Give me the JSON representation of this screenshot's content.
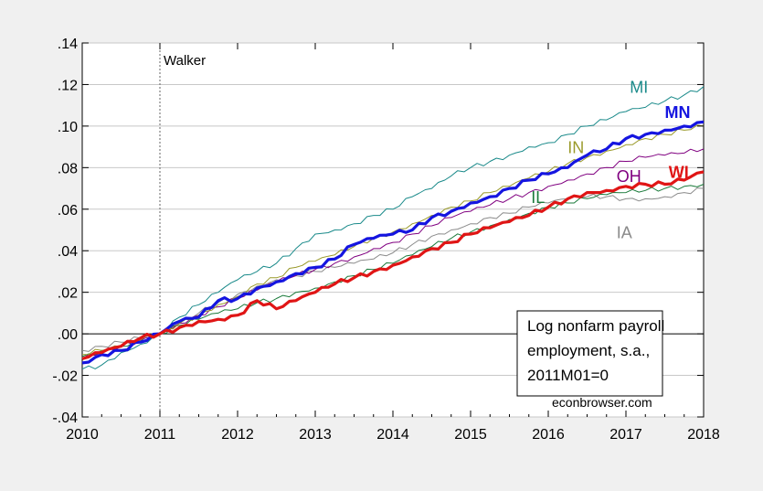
{
  "chart_data": {
    "type": "line",
    "title": "",
    "xlabel": "",
    "ylabel": "",
    "x_ticks": [
      "2010",
      "2011",
      "2012",
      "2013",
      "2014",
      "2015",
      "2016",
      "2017",
      "2018"
    ],
    "y_ticks": [
      ".14",
      ".12",
      ".10",
      ".08",
      ".06",
      ".04",
      ".02",
      ".00",
      "-.02",
      "-.04"
    ],
    "xlim": [
      2010.0,
      2018.0
    ],
    "ylim": [
      -0.04,
      0.14
    ],
    "grid": true,
    "zero_line": true,
    "vline": {
      "x": 2011.0,
      "label": "Walker"
    },
    "annotation_box": {
      "lines": [
        "Log nonfarm payroll",
        "employment, s.a.,",
        "2011M01=0"
      ],
      "source": "econbrowser.com"
    },
    "series": [
      {
        "name": "MI",
        "color": "#1a8a8a",
        "bold": false,
        "points": [
          [
            2010.0,
            -0.017
          ],
          [
            2010.25,
            -0.015
          ],
          [
            2010.5,
            -0.009
          ],
          [
            2010.75,
            -0.005
          ],
          [
            2011.0,
            0.0
          ],
          [
            2011.25,
            0.008
          ],
          [
            2011.5,
            0.014
          ],
          [
            2011.75,
            0.02
          ],
          [
            2012.0,
            0.026
          ],
          [
            2012.25,
            0.03
          ],
          [
            2012.5,
            0.034
          ],
          [
            2012.75,
            0.041
          ],
          [
            2013.0,
            0.048
          ],
          [
            2013.25,
            0.05
          ],
          [
            2013.5,
            0.053
          ],
          [
            2013.75,
            0.057
          ],
          [
            2014.0,
            0.06
          ],
          [
            2014.25,
            0.066
          ],
          [
            2014.5,
            0.07
          ],
          [
            2014.75,
            0.076
          ],
          [
            2015.0,
            0.08
          ],
          [
            2015.25,
            0.083
          ],
          [
            2015.5,
            0.086
          ],
          [
            2015.75,
            0.09
          ],
          [
            2016.0,
            0.092
          ],
          [
            2016.25,
            0.096
          ],
          [
            2016.5,
            0.1
          ],
          [
            2016.75,
            0.103
          ],
          [
            2017.0,
            0.107
          ],
          [
            2017.25,
            0.109
          ],
          [
            2017.5,
            0.112
          ],
          [
            2017.75,
            0.115
          ],
          [
            2018.0,
            0.119
          ]
        ]
      },
      {
        "name": "MN",
        "color": "#1515e0",
        "bold": true,
        "points": [
          [
            2010.0,
            -0.014
          ],
          [
            2010.25,
            -0.01
          ],
          [
            2010.5,
            -0.008
          ],
          [
            2010.75,
            -0.004
          ],
          [
            2011.0,
            0.0
          ],
          [
            2011.25,
            0.006
          ],
          [
            2011.5,
            0.008
          ],
          [
            2011.75,
            0.016
          ],
          [
            2012.0,
            0.017
          ],
          [
            2012.25,
            0.022
          ],
          [
            2012.5,
            0.025
          ],
          [
            2012.75,
            0.029
          ],
          [
            2013.0,
            0.032
          ],
          [
            2013.25,
            0.036
          ],
          [
            2013.5,
            0.043
          ],
          [
            2013.75,
            0.046
          ],
          [
            2014.0,
            0.048
          ],
          [
            2014.25,
            0.05
          ],
          [
            2014.5,
            0.056
          ],
          [
            2014.75,
            0.059
          ],
          [
            2015.0,
            0.063
          ],
          [
            2015.25,
            0.066
          ],
          [
            2015.5,
            0.07
          ],
          [
            2015.75,
            0.074
          ],
          [
            2016.0,
            0.077
          ],
          [
            2016.25,
            0.08
          ],
          [
            2016.5,
            0.086
          ],
          [
            2016.75,
            0.089
          ],
          [
            2017.0,
            0.094
          ],
          [
            2017.25,
            0.096
          ],
          [
            2017.5,
            0.098
          ],
          [
            2017.75,
            0.1
          ],
          [
            2018.0,
            0.102
          ]
        ]
      },
      {
        "name": "IN",
        "color": "#9a9a2a",
        "bold": false,
        "points": [
          [
            2010.0,
            -0.01
          ],
          [
            2010.25,
            -0.008
          ],
          [
            2010.5,
            -0.006
          ],
          [
            2010.75,
            -0.003
          ],
          [
            2011.0,
            0.0
          ],
          [
            2011.25,
            0.005
          ],
          [
            2011.5,
            0.009
          ],
          [
            2011.75,
            0.014
          ],
          [
            2012.0,
            0.018
          ],
          [
            2012.25,
            0.024
          ],
          [
            2012.5,
            0.027
          ],
          [
            2012.75,
            0.032
          ],
          [
            2013.0,
            0.035
          ],
          [
            2013.25,
            0.038
          ],
          [
            2013.5,
            0.042
          ],
          [
            2013.75,
            0.046
          ],
          [
            2014.0,
            0.049
          ],
          [
            2014.25,
            0.053
          ],
          [
            2014.5,
            0.057
          ],
          [
            2014.75,
            0.061
          ],
          [
            2015.0,
            0.064
          ],
          [
            2015.25,
            0.068
          ],
          [
            2015.5,
            0.071
          ],
          [
            2015.75,
            0.075
          ],
          [
            2016.0,
            0.078
          ],
          [
            2016.25,
            0.082
          ],
          [
            2016.5,
            0.085
          ],
          [
            2016.75,
            0.088
          ],
          [
            2017.0,
            0.091
          ],
          [
            2017.25,
            0.094
          ],
          [
            2017.5,
            0.096
          ],
          [
            2017.75,
            0.098
          ],
          [
            2018.0,
            0.1
          ]
        ]
      },
      {
        "name": "OH",
        "color": "#800080",
        "bold": false,
        "points": [
          [
            2010.0,
            -0.012
          ],
          [
            2010.25,
            -0.009
          ],
          [
            2010.5,
            -0.006
          ],
          [
            2010.75,
            -0.003
          ],
          [
            2011.0,
            0.0
          ],
          [
            2011.25,
            0.005
          ],
          [
            2011.5,
            0.009
          ],
          [
            2011.75,
            0.013
          ],
          [
            2012.0,
            0.017
          ],
          [
            2012.25,
            0.021
          ],
          [
            2012.5,
            0.025
          ],
          [
            2012.75,
            0.028
          ],
          [
            2013.0,
            0.031
          ],
          [
            2013.25,
            0.034
          ],
          [
            2013.5,
            0.037
          ],
          [
            2013.75,
            0.041
          ],
          [
            2014.0,
            0.044
          ],
          [
            2014.25,
            0.048
          ],
          [
            2014.5,
            0.052
          ],
          [
            2014.75,
            0.056
          ],
          [
            2015.0,
            0.059
          ],
          [
            2015.25,
            0.062
          ],
          [
            2015.5,
            0.065
          ],
          [
            2015.75,
            0.068
          ],
          [
            2016.0,
            0.071
          ],
          [
            2016.25,
            0.074
          ],
          [
            2016.5,
            0.077
          ],
          [
            2016.75,
            0.08
          ],
          [
            2017.0,
            0.083
          ],
          [
            2017.25,
            0.085
          ],
          [
            2017.5,
            0.086
          ],
          [
            2017.75,
            0.087
          ],
          [
            2018.0,
            0.089
          ]
        ]
      },
      {
        "name": "IL",
        "color": "#1a7a3a",
        "bold": false,
        "points": [
          [
            2010.0,
            -0.011
          ],
          [
            2010.25,
            -0.008
          ],
          [
            2010.5,
            -0.006
          ],
          [
            2010.75,
            -0.003
          ],
          [
            2011.0,
            0.0
          ],
          [
            2011.25,
            0.004
          ],
          [
            2011.5,
            0.007
          ],
          [
            2011.75,
            0.01
          ],
          [
            2012.0,
            0.012
          ],
          [
            2012.25,
            0.015
          ],
          [
            2012.5,
            0.017
          ],
          [
            2012.75,
            0.02
          ],
          [
            2013.0,
            0.022
          ],
          [
            2013.25,
            0.025
          ],
          [
            2013.5,
            0.028
          ],
          [
            2013.75,
            0.031
          ],
          [
            2014.0,
            0.034
          ],
          [
            2014.25,
            0.038
          ],
          [
            2014.5,
            0.042
          ],
          [
            2014.75,
            0.046
          ],
          [
            2015.0,
            0.049
          ],
          [
            2015.25,
            0.052
          ],
          [
            2015.5,
            0.055
          ],
          [
            2015.75,
            0.058
          ],
          [
            2016.0,
            0.061
          ],
          [
            2016.25,
            0.063
          ],
          [
            2016.5,
            0.065
          ],
          [
            2016.75,
            0.067
          ],
          [
            2017.0,
            0.068
          ],
          [
            2017.25,
            0.069
          ],
          [
            2017.5,
            0.07
          ],
          [
            2017.75,
            0.071
          ],
          [
            2018.0,
            0.072
          ]
        ]
      },
      {
        "name": "IA",
        "color": "#8a8a8a",
        "bold": false,
        "points": [
          [
            2010.0,
            -0.008
          ],
          [
            2010.25,
            -0.006
          ],
          [
            2010.5,
            -0.004
          ],
          [
            2010.75,
            -0.002
          ],
          [
            2011.0,
            0.0
          ],
          [
            2011.25,
            0.005
          ],
          [
            2011.5,
            0.01
          ],
          [
            2011.75,
            0.015
          ],
          [
            2012.0,
            0.019
          ],
          [
            2012.25,
            0.023
          ],
          [
            2012.5,
            0.026
          ],
          [
            2012.75,
            0.028
          ],
          [
            2013.0,
            0.03
          ],
          [
            2013.25,
            0.032
          ],
          [
            2013.5,
            0.034
          ],
          [
            2013.75,
            0.036
          ],
          [
            2014.0,
            0.039
          ],
          [
            2014.25,
            0.043
          ],
          [
            2014.5,
            0.047
          ],
          [
            2014.75,
            0.05
          ],
          [
            2015.0,
            0.053
          ],
          [
            2015.25,
            0.056
          ],
          [
            2015.5,
            0.058
          ],
          [
            2015.75,
            0.061
          ],
          [
            2016.0,
            0.063
          ],
          [
            2016.25,
            0.065
          ],
          [
            2016.5,
            0.066
          ],
          [
            2016.75,
            0.066
          ],
          [
            2017.0,
            0.065
          ],
          [
            2017.25,
            0.065
          ],
          [
            2017.5,
            0.066
          ],
          [
            2017.75,
            0.068
          ],
          [
            2018.0,
            0.07
          ]
        ]
      },
      {
        "name": "WI",
        "color": "#e01515",
        "bold": true,
        "points": [
          [
            2010.0,
            -0.012
          ],
          [
            2010.25,
            -0.009
          ],
          [
            2010.5,
            -0.006
          ],
          [
            2010.75,
            -0.002
          ],
          [
            2011.0,
            0.0
          ],
          [
            2011.25,
            0.003
          ],
          [
            2011.5,
            0.006
          ],
          [
            2011.75,
            0.007
          ],
          [
            2012.0,
            0.009
          ],
          [
            2012.25,
            0.016
          ],
          [
            2012.5,
            0.012
          ],
          [
            2012.75,
            0.016
          ],
          [
            2013.0,
            0.02
          ],
          [
            2013.25,
            0.024
          ],
          [
            2013.5,
            0.027
          ],
          [
            2013.75,
            0.03
          ],
          [
            2014.0,
            0.033
          ],
          [
            2014.25,
            0.037
          ],
          [
            2014.5,
            0.041
          ],
          [
            2014.75,
            0.044
          ],
          [
            2015.0,
            0.048
          ],
          [
            2015.25,
            0.051
          ],
          [
            2015.5,
            0.054
          ],
          [
            2015.75,
            0.057
          ],
          [
            2016.0,
            0.061
          ],
          [
            2016.25,
            0.065
          ],
          [
            2016.5,
            0.068
          ],
          [
            2016.75,
            0.069
          ],
          [
            2017.0,
            0.071
          ],
          [
            2017.25,
            0.072
          ],
          [
            2017.5,
            0.072
          ],
          [
            2017.75,
            0.074
          ],
          [
            2018.0,
            0.078
          ]
        ]
      }
    ],
    "series_labels": [
      {
        "name": "MI",
        "x": 2007.0,
        "y": 0.116,
        "color": "#1a8a8a",
        "bold": false,
        "anchor_x": 2017.05
      },
      {
        "name": "MN",
        "x": 2017.5,
        "y": 0.104,
        "color": "#1515e0",
        "bold": true
      },
      {
        "name": "IN",
        "x": 2016.25,
        "y": 0.087,
        "color": "#9a9a2a",
        "bold": false
      },
      {
        "name": "OH",
        "x": 2016.88,
        "y": 0.073,
        "color": "#800080",
        "bold": false
      },
      {
        "name": "WI",
        "x": 2017.55,
        "y": 0.075,
        "color": "#e01515",
        "bold": true
      },
      {
        "name": "IL",
        "x": 2015.78,
        "y": 0.063,
        "color": "#1a7a3a",
        "bold": false
      },
      {
        "name": "IA",
        "x": 2016.88,
        "y": 0.046,
        "color": "#8a8a8a",
        "bold": false
      }
    ]
  }
}
